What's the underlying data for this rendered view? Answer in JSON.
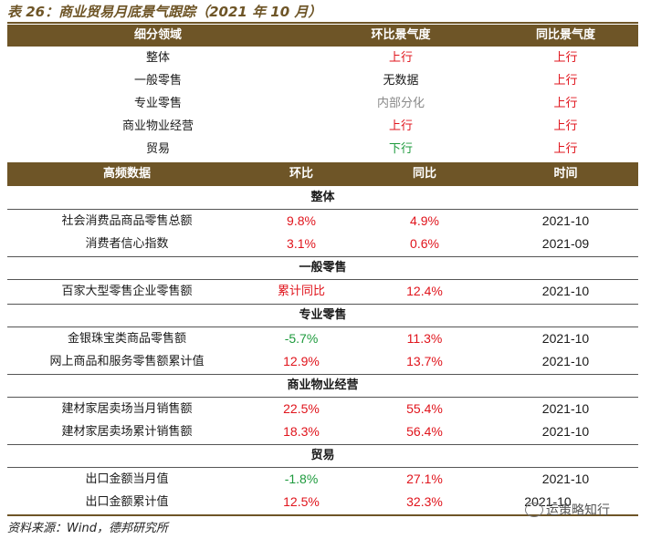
{
  "title": "表 26：商业贸易月底景气跟踪（2021 年 10 月）",
  "table1": {
    "headers": [
      "细分领域",
      "环比景气度",
      "同比景气度"
    ],
    "rows": [
      {
        "field": "整体",
        "mom": "上行",
        "mom_color": "red",
        "yoy": "上行",
        "yoy_color": "red"
      },
      {
        "field": "一般零售",
        "mom": "无数据",
        "mom_color": "black",
        "yoy": "上行",
        "yoy_color": "red"
      },
      {
        "field": "专业零售",
        "mom": "内部分化",
        "mom_color": "gray",
        "yoy": "上行",
        "yoy_color": "red"
      },
      {
        "field": "商业物业经营",
        "mom": "上行",
        "mom_color": "red",
        "yoy": "上行",
        "yoy_color": "red"
      },
      {
        "field": "贸易",
        "mom": "下行",
        "mom_color": "green",
        "yoy": "上行",
        "yoy_color": "red"
      }
    ]
  },
  "table2": {
    "headers": [
      "高频数据",
      "环比",
      "同比",
      "时间"
    ],
    "sections": [
      {
        "name": "整体",
        "rows": [
          {
            "item": "社会消费品商品零售总额",
            "mom": "9.8%",
            "mom_color": "red",
            "yoy": "4.9%",
            "yoy_color": "red",
            "time": "2021-10"
          },
          {
            "item": "消费者信心指数",
            "mom": "3.1%",
            "mom_color": "red",
            "yoy": "0.6%",
            "yoy_color": "red",
            "time": "2021-09"
          }
        ]
      },
      {
        "name": "一般零售",
        "rows": [
          {
            "item": "百家大型零售企业零售额",
            "mom": "累计同比",
            "mom_color": "red",
            "yoy": "12.4%",
            "yoy_color": "red",
            "time": "2021-10"
          }
        ]
      },
      {
        "name": "专业零售",
        "rows": [
          {
            "item": "金银珠宝类商品零售额",
            "mom": "-5.7%",
            "mom_color": "green",
            "yoy": "11.3%",
            "yoy_color": "red",
            "time": "2021-10"
          },
          {
            "item": "网上商品和服务零售额累计值",
            "mom": "12.9%",
            "mom_color": "red",
            "yoy": "13.7%",
            "yoy_color": "red",
            "time": "2021-10"
          }
        ]
      },
      {
        "name": "商业物业经营",
        "rows": [
          {
            "item": "建材家居卖场当月销售额",
            "mom": "22.5%",
            "mom_color": "red",
            "yoy": "55.4%",
            "yoy_color": "red",
            "time": "2021-10"
          },
          {
            "item": "建材家居卖场累计销售额",
            "mom": "18.3%",
            "mom_color": "red",
            "yoy": "56.4%",
            "yoy_color": "red",
            "time": "2021-10"
          }
        ]
      },
      {
        "name": "贸易",
        "rows": [
          {
            "item": "出口金额当月值",
            "mom": "-1.8%",
            "mom_color": "green",
            "yoy": "27.1%",
            "yoy_color": "red",
            "time": "2021-10"
          },
          {
            "item": "出口金额累计值",
            "mom": "12.5%",
            "mom_color": "red",
            "yoy": "32.3%",
            "yoy_color": "red",
            "time": "2021-10"
          }
        ]
      }
    ]
  },
  "source": "资料来源：Wind，德邦研究所",
  "watermark": "运策略知行"
}
